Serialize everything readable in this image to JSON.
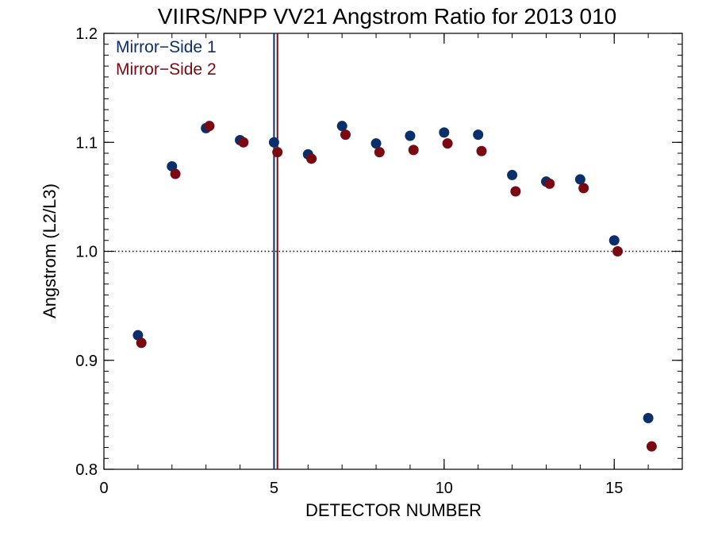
{
  "chart_data": {
    "type": "scatter",
    "title": "VIIRS/NPP VV21 Angstrom Ratio for 2013 010",
    "xlabel": "DETECTOR NUMBER",
    "ylabel": "Angstrom (L2/L3)",
    "xlim": [
      0,
      17
    ],
    "ylim": [
      0.8,
      1.2
    ],
    "x_ticks": [
      0,
      5,
      10,
      15
    ],
    "y_ticks": [
      0.8,
      0.9,
      1.0,
      1.1,
      1.2
    ],
    "x_tick_labels": [
      "0",
      "5",
      "10",
      "15"
    ],
    "y_tick_labels": [
      "0.8",
      "0.9",
      "1.0",
      "1.1",
      "1.2"
    ],
    "grid": false,
    "legend_position": "top-left",
    "reference_line": {
      "y": 1.0,
      "style": "dotted",
      "color": "#000000"
    },
    "vertical_lines": [
      {
        "x": 5.0,
        "color": "#0b2f6b"
      },
      {
        "x": 5.1,
        "color": "#7a0a12"
      }
    ],
    "series": [
      {
        "name": "Mirror−Side 1",
        "color": "#0b2f6b",
        "x": [
          1,
          2,
          3,
          4,
          5,
          6,
          7,
          8,
          9,
          10,
          11,
          12,
          13,
          14,
          15,
          16
        ],
        "y": [
          0.923,
          1.078,
          1.113,
          1.102,
          1.1,
          1.089,
          1.115,
          1.099,
          1.106,
          1.109,
          1.107,
          1.07,
          1.064,
          1.066,
          1.01,
          0.847
        ]
      },
      {
        "name": "Mirror−Side 2",
        "color": "#7a0a12",
        "x": [
          1.1,
          2.1,
          3.1,
          4.1,
          5.1,
          6.1,
          7.1,
          8.1,
          9.1,
          10.1,
          11.1,
          12.1,
          13.1,
          14.1,
          15.1,
          16.1
        ],
        "y": [
          0.916,
          1.071,
          1.115,
          1.1,
          1.091,
          1.085,
          1.107,
          1.091,
          1.093,
          1.099,
          1.092,
          1.055,
          1.062,
          1.058,
          1.0,
          0.821
        ]
      }
    ]
  }
}
